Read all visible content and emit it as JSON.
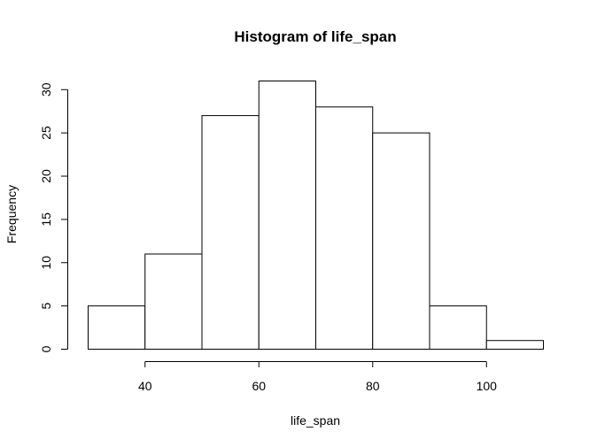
{
  "chart_data": {
    "type": "bar",
    "title": "Histogram of life_span",
    "xlabel": "life_span",
    "ylabel": "Frequency",
    "bins": [
      {
        "from": 30,
        "to": 40,
        "count": 5
      },
      {
        "from": 40,
        "to": 50,
        "count": 11
      },
      {
        "from": 50,
        "to": 60,
        "count": 27
      },
      {
        "from": 60,
        "to": 70,
        "count": 31
      },
      {
        "from": 70,
        "to": 80,
        "count": 28
      },
      {
        "from": 80,
        "to": 90,
        "count": 25
      },
      {
        "from": 90,
        "to": 100,
        "count": 5
      },
      {
        "from": 100,
        "to": 110,
        "count": 1
      }
    ],
    "xlim": [
      30,
      110
    ],
    "ylim": [
      0,
      31
    ],
    "x_ticks": [
      40,
      60,
      80,
      100
    ],
    "y_ticks": [
      0,
      5,
      10,
      15,
      20,
      25,
      30
    ],
    "grid": false,
    "bar_fill": "#ffffff",
    "bar_stroke": "#000000"
  }
}
